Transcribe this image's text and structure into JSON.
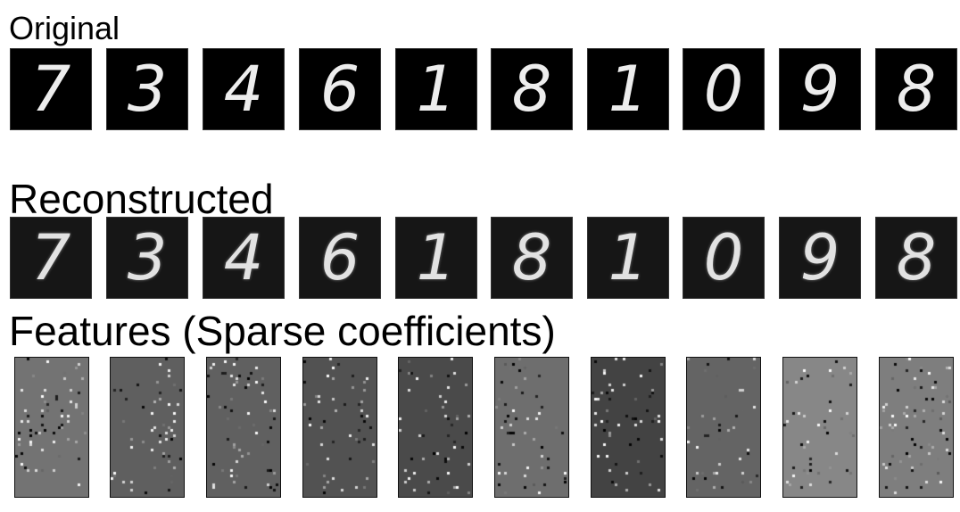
{
  "sections": {
    "original_title": "Original",
    "reconstructed_title": "Reconstructed",
    "features_title": "Features (Sparse coefficients)"
  },
  "digits": [
    {
      "label": "7",
      "feature_gray": "#737373"
    },
    {
      "label": "3",
      "feature_gray": "#5f5f5f"
    },
    {
      "label": "4",
      "feature_gray": "#606060"
    },
    {
      "label": "6",
      "feature_gray": "#525252"
    },
    {
      "label": "1",
      "feature_gray": "#4a4a4a"
    },
    {
      "label": "8",
      "feature_gray": "#6e6e6e"
    },
    {
      "label": "1",
      "feature_gray": "#434343"
    },
    {
      "label": "0",
      "feature_gray": "#646464"
    },
    {
      "label": "9",
      "feature_gray": "#878787"
    },
    {
      "label": "8",
      "feature_gray": "#7e7e7e"
    }
  ]
}
